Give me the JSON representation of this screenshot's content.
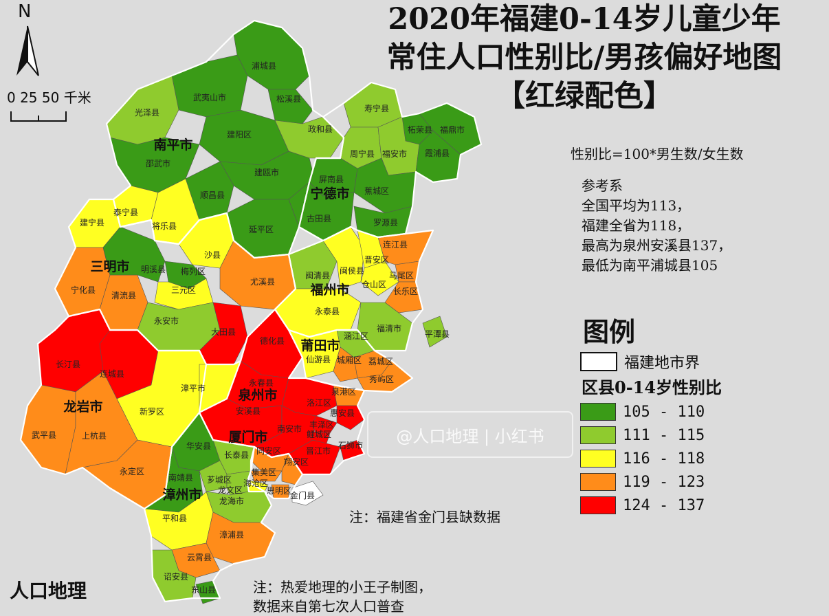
{
  "title": {
    "line1": "2020年福建0-14岁儿童少年",
    "line2": "常住人口性别比/男孩偏好地图",
    "line3": "【红绿配色】"
  },
  "north_arrow": {
    "label": "N"
  },
  "scale_bar": {
    "label": "0  25  50 千米"
  },
  "formula": "性别比=100*男生数/女生数",
  "reference": {
    "heading": "参考系",
    "lines": [
      "全国平均为113，",
      "福建全省为118，",
      "最高为泉州安溪县137，",
      "最低为南平浦城县105"
    ]
  },
  "legend": {
    "title": "图例",
    "boundary_label": "福建地市界",
    "subtitle": "区县0-14岁性别比",
    "items": [
      {
        "range": "105 - 110",
        "color": "#3a9b17"
      },
      {
        "range": "111 - 115",
        "color": "#8fcb2e"
      },
      {
        "range": "116 - 118",
        "color": "#ffff22"
      },
      {
        "range": "119 - 123",
        "color": "#ff8c1a"
      },
      {
        "range": "124 - 137",
        "color": "#ff0000"
      }
    ]
  },
  "notes": {
    "kinmen": "注：福建省金门县缺数据",
    "credit_line1": "注：热爱地理的小王子制图，",
    "credit_line2": "数据来自第七次人口普查"
  },
  "watermark": {
    "text": "@人口地理 | 小红书",
    "logo": "人口地理"
  },
  "cities": [
    {
      "name": "南平市"
    },
    {
      "name": "宁德市"
    },
    {
      "name": "三明市"
    },
    {
      "name": "福州市"
    },
    {
      "name": "莆田市"
    },
    {
      "name": "龙岩市"
    },
    {
      "name": "泉州市"
    },
    {
      "name": "厦门市"
    },
    {
      "name": "漳州市"
    }
  ],
  "counties": [
    {
      "name": "浦城县",
      "cls": 1
    },
    {
      "name": "武夷山市",
      "cls": 1
    },
    {
      "name": "松溪县",
      "cls": 1
    },
    {
      "name": "光泽县",
      "cls": 2
    },
    {
      "name": "建阳区",
      "cls": 1
    },
    {
      "name": "政和县",
      "cls": 2
    },
    {
      "name": "寿宁县",
      "cls": 2
    },
    {
      "name": "柘荣县",
      "cls": 1
    },
    {
      "name": "福鼎市",
      "cls": 1
    },
    {
      "name": "邵武市",
      "cls": 1
    },
    {
      "name": "建瓯市",
      "cls": 1
    },
    {
      "name": "周宁县",
      "cls": 2
    },
    {
      "name": "福安市",
      "cls": 2
    },
    {
      "name": "霞浦县",
      "cls": 1
    },
    {
      "name": "顺昌县",
      "cls": 1
    },
    {
      "name": "屏南县",
      "cls": 1
    },
    {
      "name": "蕉城区",
      "cls": 1
    },
    {
      "name": "建宁县",
      "cls": 3
    },
    {
      "name": "泰宁县",
      "cls": 3
    },
    {
      "name": "将乐县",
      "cls": 3
    },
    {
      "name": "古田县",
      "cls": 1
    },
    {
      "name": "延平区",
      "cls": 1
    },
    {
      "name": "罗源县",
      "cls": 1
    },
    {
      "name": "连江县",
      "cls": 4
    },
    {
      "name": "沙县",
      "cls": 3
    },
    {
      "name": "明溪县",
      "cls": 1
    },
    {
      "name": "梅列区",
      "cls": 1
    },
    {
      "name": "晋安区",
      "cls": 3
    },
    {
      "name": "马尾区",
      "cls": 4
    },
    {
      "name": "闽清县",
      "cls": 2
    },
    {
      "name": "闽侯县",
      "cls": 3
    },
    {
      "name": "尤溪县",
      "cls": 4
    },
    {
      "name": "宁化县",
      "cls": 4
    },
    {
      "name": "清流县",
      "cls": 4
    },
    {
      "name": "三元区",
      "cls": 3
    },
    {
      "name": "仓山区",
      "cls": 3
    },
    {
      "name": "长乐区",
      "cls": 4
    },
    {
      "name": "永安市",
      "cls": 2
    },
    {
      "name": "永泰县",
      "cls": 3
    },
    {
      "name": "大田县",
      "cls": 5
    },
    {
      "name": "德化县",
      "cls": 5
    },
    {
      "name": "涵江区",
      "cls": 2
    },
    {
      "name": "福清市",
      "cls": 2
    },
    {
      "name": "平潭县",
      "cls": 2
    },
    {
      "name": "长汀县",
      "cls": 5
    },
    {
      "name": "仙游县",
      "cls": 3
    },
    {
      "name": "城厢区",
      "cls": 4
    },
    {
      "name": "荔城区",
      "cls": 4
    },
    {
      "name": "连城县",
      "cls": 5
    },
    {
      "name": "秀屿区",
      "cls": 4
    },
    {
      "name": "永春县",
      "cls": 5
    },
    {
      "name": "漳平市",
      "cls": 3
    },
    {
      "name": "泉港区",
      "cls": 4
    },
    {
      "name": "新罗区",
      "cls": 3
    },
    {
      "name": "安溪县",
      "cls": 5
    },
    {
      "name": "洛江区",
      "cls": 5
    },
    {
      "name": "惠安县",
      "cls": 5
    },
    {
      "name": "武平县",
      "cls": 4
    },
    {
      "name": "上杭县",
      "cls": 4
    },
    {
      "name": "南安市",
      "cls": 5
    },
    {
      "name": "丰泽区",
      "cls": 5
    },
    {
      "name": "鲤城区",
      "cls": 5
    },
    {
      "name": "石狮市",
      "cls": 5
    },
    {
      "name": "华安县",
      "cls": 1
    },
    {
      "name": "长泰县",
      "cls": 2
    },
    {
      "name": "同安区",
      "cls": 4
    },
    {
      "name": "晋江市",
      "cls": 5
    },
    {
      "name": "翔安区",
      "cls": 4
    },
    {
      "name": "永定区",
      "cls": 4
    },
    {
      "name": "南靖县",
      "cls": 1
    },
    {
      "name": "芗城区",
      "cls": 2
    },
    {
      "name": "集美区",
      "cls": 4
    },
    {
      "name": "龙文区",
      "cls": 2
    },
    {
      "name": "海沧区",
      "cls": 3
    },
    {
      "name": "金门县",
      "cls": 0
    },
    {
      "name": "龙海市",
      "cls": 2
    },
    {
      "name": "思明区",
      "cls": 4
    },
    {
      "name": "平和县",
      "cls": 3
    },
    {
      "name": "漳浦县",
      "cls": 4
    },
    {
      "name": "云霄县",
      "cls": 4
    },
    {
      "name": "诏安县",
      "cls": 2
    },
    {
      "name": "东山县",
      "cls": 1
    }
  ]
}
